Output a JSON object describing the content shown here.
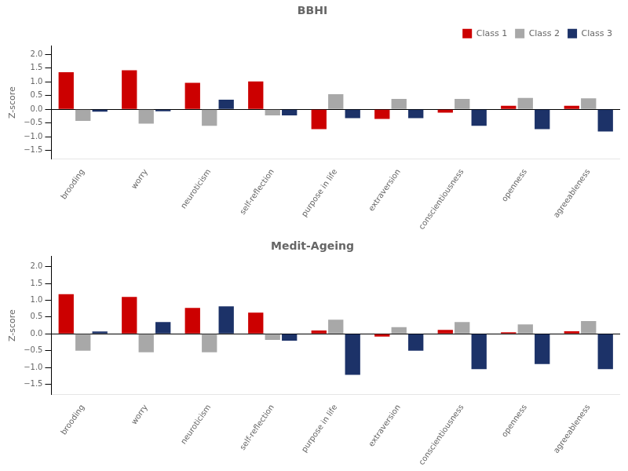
{
  "chart_data": [
    {
      "type": "bar",
      "title": "BBHI",
      "categories": [
        "brooding",
        "worry",
        "neuroticism",
        "self-reflection",
        "purpose in life",
        "extraversion",
        "conscientiousness",
        "openness",
        "agreeableness"
      ],
      "series": [
        {
          "name": "Class 1",
          "color": "#CC0000",
          "values": [
            1.35,
            1.42,
            0.97,
            1.02,
            -0.72,
            -0.35,
            -0.12,
            0.13,
            0.13
          ]
        },
        {
          "name": "Class 2",
          "color": "#A8A8A8",
          "values": [
            -0.42,
            -0.52,
            -0.6,
            -0.22,
            0.55,
            0.38,
            0.38,
            0.42,
            0.4
          ]
        },
        {
          "name": "Class 3",
          "color": "#1C3268",
          "values": [
            -0.08,
            -0.07,
            0.35,
            -0.22,
            -0.32,
            -0.32,
            -0.6,
            -0.72,
            -0.8
          ]
        }
      ],
      "ylabel": "Z-score",
      "ylim": [
        -1.8,
        2.3
      ],
      "yticks": [
        {
          "value": -1.5,
          "label": "−1.5"
        },
        {
          "value": -1.0,
          "label": "−1.0"
        },
        {
          "value": -0.5,
          "label": "−0.5"
        },
        {
          "value": 0.0,
          "label": "0.0"
        },
        0.5,
        {
          "value": 1.0,
          "label": "1.0"
        },
        1.5,
        {
          "value": 2.0,
          "label": "2.0"
        }
      ],
      "grid": false,
      "legend": "upper right"
    },
    {
      "type": "bar",
      "title": "Medit-Ageing",
      "categories": [
        "brooding",
        "worry",
        "neuroticism",
        "self-reflection",
        "purpose in life",
        "extraversion",
        "conscientiousness",
        "openness",
        "agreeableness"
      ],
      "series": [
        {
          "name": "Class 1",
          "color": "#CC0000",
          "values": [
            1.18,
            1.1,
            0.77,
            0.63,
            0.1,
            -0.08,
            0.12,
            0.05,
            0.08
          ]
        },
        {
          "name": "Class 2",
          "color": "#A8A8A8",
          "values": [
            -0.5,
            -0.55,
            -0.55,
            -0.18,
            0.42,
            0.2,
            0.35,
            0.28,
            0.38
          ]
        },
        {
          "name": "Class 3",
          "color": "#1C3268",
          "values": [
            0.07,
            0.35,
            0.82,
            -0.2,
            -1.22,
            -0.5,
            -1.05,
            -0.9,
            -1.05
          ]
        }
      ],
      "ylabel": "Z-score",
      "ylim": [
        -1.8,
        2.3
      ],
      "yticks": [
        {
          "value": -1.5,
          "label": "−1.5"
        },
        {
          "value": -1.0,
          "label": "−1.0"
        },
        {
          "value": -0.5,
          "label": "−0.5"
        },
        {
          "value": 0.0,
          "label": "0.0"
        },
        0.5,
        {
          "value": 1.0,
          "label": "1.0"
        },
        1.5,
        {
          "value": 2.0,
          "label": "2.0"
        }
      ],
      "grid": false
    }
  ]
}
